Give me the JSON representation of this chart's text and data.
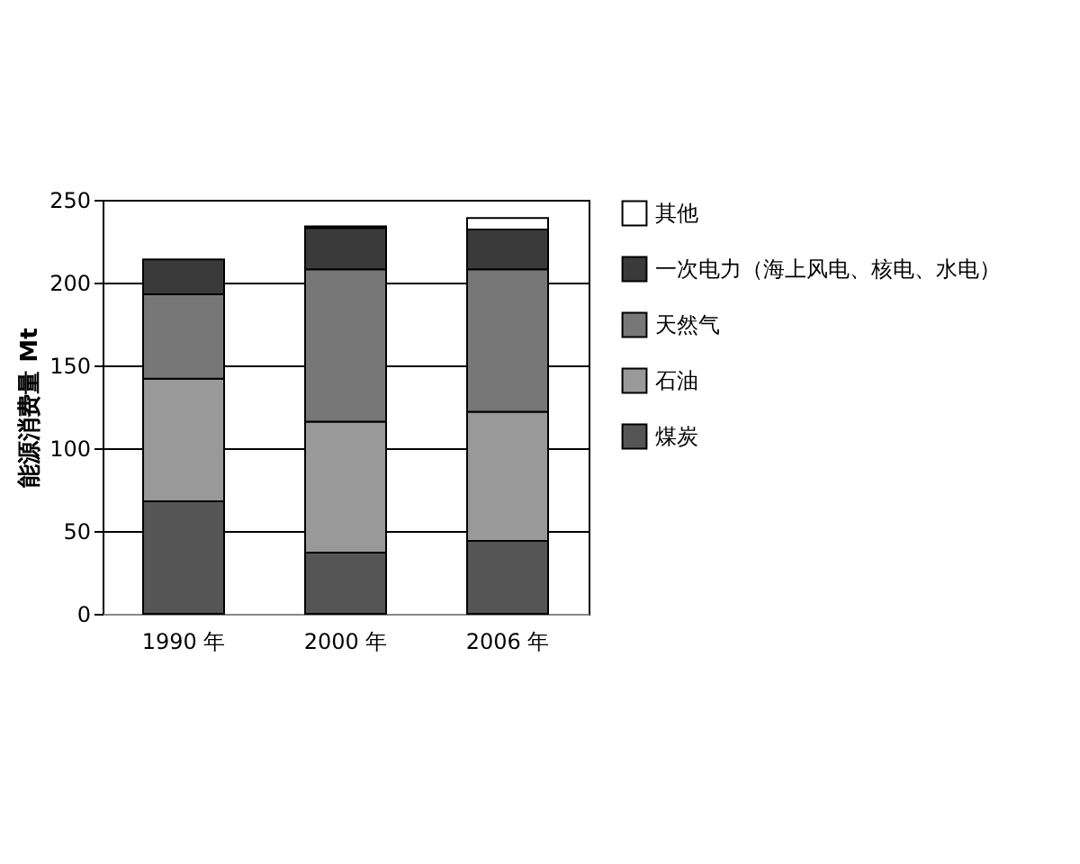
{
  "chart_data": {
    "type": "bar",
    "ylabel": "能源消费量 Mt",
    "categories": [
      "1990 年",
      "2000 年",
      "2006 年"
    ],
    "stacked": true,
    "series": [
      {
        "name": "煤炭",
        "color": "#555555",
        "values": [
          68,
          37,
          44
        ]
      },
      {
        "name": "石油",
        "color": "#999999",
        "values": [
          74,
          79,
          78
        ]
      },
      {
        "name": "天然气",
        "color": "#777777",
        "values": [
          51,
          92,
          86
        ]
      },
      {
        "name": "一次电力（海上风电、核电、水电）",
        "color": "#3a3a3a",
        "values": [
          21,
          25,
          24
        ]
      },
      {
        "name": "其他",
        "color": "#ffffff",
        "values": [
          null,
          1,
          7
        ]
      }
    ],
    "ylim": [
      0,
      250
    ],
    "yticks": [
      0,
      50,
      100,
      150,
      200,
      250
    ],
    "grid": "y",
    "legend": "right"
  }
}
